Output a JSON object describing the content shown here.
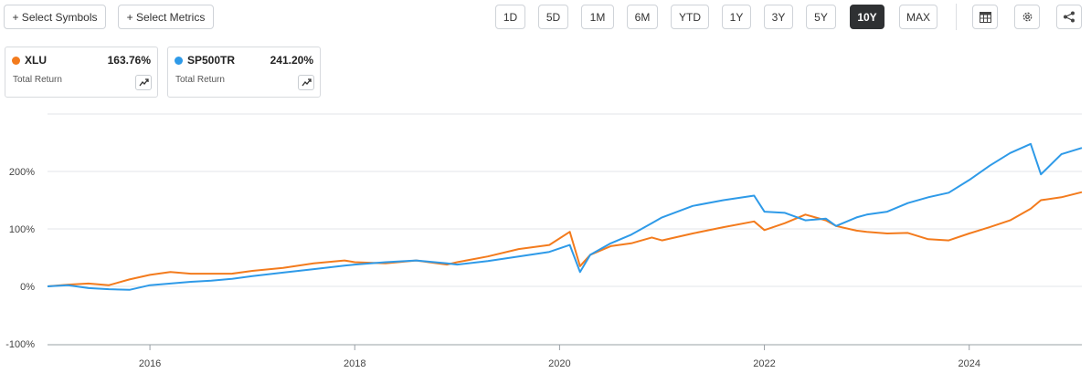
{
  "toolbar": {
    "select_symbols": "+ Select Symbols",
    "select_metrics": "+ Select Metrics",
    "ranges": [
      "1D",
      "5D",
      "1M",
      "6M",
      "YTD",
      "1Y",
      "3Y",
      "5Y",
      "10Y",
      "MAX"
    ],
    "active_range": "10Y",
    "icons": [
      "table-icon",
      "settings-gear-icon",
      "share-icon"
    ]
  },
  "cards": [
    {
      "symbol": "XLU",
      "value": "163.76%",
      "subtitle": "Total Return",
      "color": "#f37b1d"
    },
    {
      "symbol": "SP500TR",
      "value": "241.20%",
      "subtitle": "Total Return",
      "color": "#2e9ae8"
    }
  ],
  "chart_data": {
    "type": "line",
    "x_tick_labels": [
      "2016",
      "2018",
      "2020",
      "2022",
      "2024"
    ],
    "y_tick_labels": [
      "200%",
      "100%",
      "0%",
      "-100%"
    ],
    "x_range": [
      2015.0,
      2025.1
    ],
    "ylim": [
      -100,
      300
    ],
    "grid": true,
    "series": [
      {
        "name": "XLU",
        "color": "#f37b1d",
        "x": [
          2015.0,
          2015.2,
          2015.4,
          2015.6,
          2015.8,
          2016.0,
          2016.2,
          2016.4,
          2016.6,
          2016.8,
          2017.0,
          2017.3,
          2017.6,
          2017.9,
          2018.0,
          2018.3,
          2018.6,
          2018.9,
          2019.0,
          2019.3,
          2019.6,
          2019.9,
          2020.1,
          2020.2,
          2020.3,
          2020.5,
          2020.7,
          2020.9,
          2021.0,
          2021.3,
          2021.6,
          2021.9,
          2022.0,
          2022.2,
          2022.4,
          2022.6,
          2022.7,
          2022.9,
          2023.0,
          2023.2,
          2023.4,
          2023.6,
          2023.8,
          2024.0,
          2024.2,
          2024.4,
          2024.6,
          2024.7,
          2024.9,
          2025.1
        ],
        "y": [
          0,
          3,
          5,
          2,
          12,
          20,
          25,
          22,
          22,
          22,
          27,
          32,
          40,
          45,
          42,
          40,
          45,
          38,
          42,
          52,
          65,
          72,
          95,
          35,
          55,
          70,
          75,
          85,
          80,
          92,
          103,
          113,
          98,
          110,
          125,
          115,
          105,
          97,
          95,
          92,
          93,
          82,
          80,
          92,
          103,
          115,
          135,
          150,
          155,
          164
        ]
      },
      {
        "name": "SP500TR",
        "color": "#2e9ae8",
        "x": [
          2015.0,
          2015.2,
          2015.4,
          2015.6,
          2015.8,
          2016.0,
          2016.2,
          2016.4,
          2016.6,
          2016.8,
          2017.0,
          2017.3,
          2017.6,
          2017.9,
          2018.0,
          2018.3,
          2018.6,
          2018.9,
          2019.0,
          2019.3,
          2019.6,
          2019.9,
          2020.1,
          2020.2,
          2020.3,
          2020.5,
          2020.7,
          2020.9,
          2021.0,
          2021.3,
          2021.6,
          2021.9,
          2022.0,
          2022.2,
          2022.4,
          2022.6,
          2022.7,
          2022.9,
          2023.0,
          2023.2,
          2023.4,
          2023.6,
          2023.8,
          2024.0,
          2024.2,
          2024.4,
          2024.6,
          2024.7,
          2024.9,
          2025.1
        ],
        "y": [
          0,
          2,
          -3,
          -5,
          -6,
          2,
          5,
          8,
          10,
          13,
          18,
          24,
          30,
          36,
          38,
          42,
          45,
          40,
          38,
          44,
          52,
          60,
          72,
          25,
          55,
          75,
          90,
          110,
          120,
          140,
          150,
          158,
          130,
          128,
          115,
          118,
          105,
          120,
          125,
          130,
          145,
          155,
          163,
          185,
          210,
          232,
          248,
          195,
          230,
          241
        ]
      }
    ]
  }
}
